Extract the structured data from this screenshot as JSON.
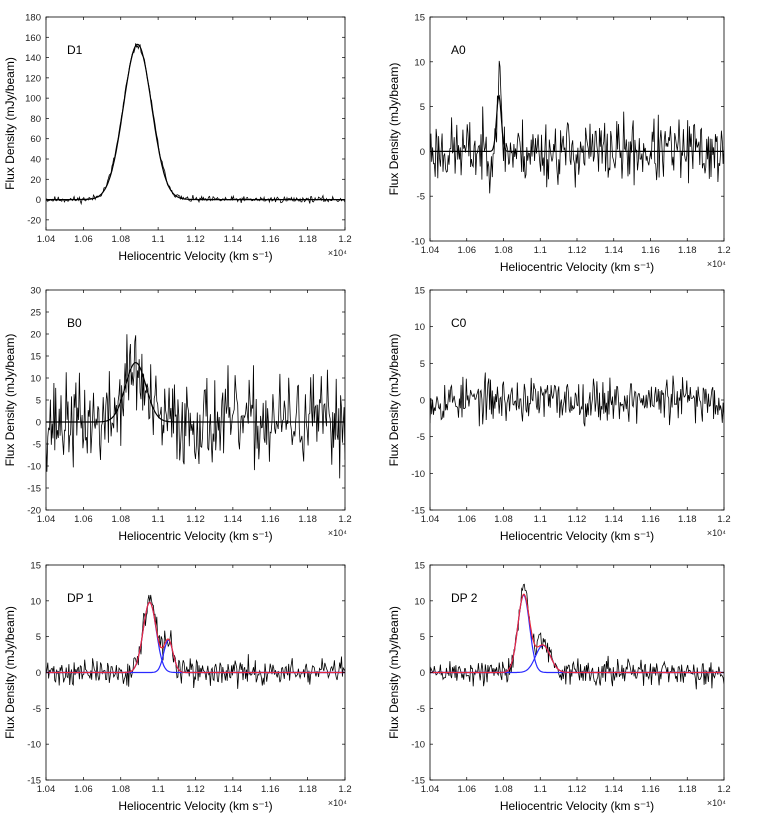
{
  "chart_data": [
    {
      "id": "D1",
      "type": "line",
      "label": "D1",
      "xlabel": "Heliocentric Velocity (km s⁻¹)",
      "ylabel": "Flux Density (mJy/beam)",
      "x_multiplier_label": "×10⁴",
      "xlim": [
        1.04,
        1.2
      ],
      "xticks": [
        "1.04",
        "1.06",
        "1.08",
        "1.1",
        "1.12",
        "1.14",
        "1.16",
        "1.18",
        "1.2"
      ],
      "ylim": [
        -30,
        180
      ],
      "yticks": [
        "-20",
        "0",
        "20",
        "40",
        "60",
        "80",
        "100",
        "120",
        "140",
        "160",
        "180"
      ],
      "series": [
        {
          "kind": "observed",
          "color": "#000000",
          "noise": 1.5,
          "seed": 11,
          "components": [
            {
              "center": 1.089,
              "amplitude": 152,
              "sigma": 0.0077
            }
          ]
        },
        {
          "kind": "fit",
          "color": "#000000",
          "components": [
            {
              "center": 1.089,
              "amplitude": 153,
              "sigma": 0.0075
            }
          ]
        }
      ]
    },
    {
      "id": "A0",
      "type": "line",
      "label": "A0",
      "xlabel": "Heliocentric Velocity (km s⁻¹)",
      "ylabel": "Flux Density (mJy/beam)",
      "x_multiplier_label": "×10⁴",
      "xlim": [
        1.04,
        1.2
      ],
      "xticks": [
        "1.04",
        "1.06",
        "1.08",
        "1.1",
        "1.12",
        "1.14",
        "1.16",
        "1.18",
        "1.2"
      ],
      "ylim": [
        -10,
        15
      ],
      "yticks": [
        "-10",
        "-5",
        "0",
        "5",
        "10",
        "15"
      ],
      "series": [
        {
          "kind": "observed",
          "color": "#000000",
          "noise": 1.8,
          "seed": 23,
          "components": [
            {
              "center": 1.0775,
              "amplitude": 7.5,
              "sigma": 0.0013
            }
          ]
        },
        {
          "kind": "fit",
          "color": "#000000",
          "components": [
            {
              "center": 1.0775,
              "amplitude": 6.2,
              "sigma": 0.0013
            }
          ]
        }
      ]
    },
    {
      "id": "B0",
      "type": "line",
      "label": "B0",
      "xlabel": "Heliocentric Velocity (km s⁻¹)",
      "ylabel": "Flux Density (mJy/beam)",
      "x_multiplier_label": "×10⁴",
      "xlim": [
        1.04,
        1.2
      ],
      "xticks": [
        "1.04",
        "1.06",
        "1.08",
        "1.1",
        "1.12",
        "1.14",
        "1.16",
        "1.18",
        "1.2"
      ],
      "ylim": [
        -20,
        30
      ],
      "yticks": [
        "-20",
        "-15",
        "-10",
        "-5",
        "0",
        "5",
        "10",
        "15",
        "20",
        "25",
        "30"
      ],
      "series": [
        {
          "kind": "observed",
          "color": "#000000",
          "noise": 5.0,
          "seed": 37,
          "components": [
            {
              "center": 1.087,
              "amplitude": 12,
              "sigma": 0.0055
            }
          ]
        },
        {
          "kind": "fit",
          "color": "#000000",
          "components": [
            {
              "center": 1.088,
              "amplitude": 13.5,
              "sigma": 0.0055
            }
          ]
        }
      ]
    },
    {
      "id": "C0",
      "type": "line",
      "label": "C0",
      "xlabel": "Heliocentric Velocity (km s⁻¹)",
      "ylabel": "Flux Density (mJy/beam)",
      "x_multiplier_label": "×10⁴",
      "xlim": [
        1.04,
        1.2
      ],
      "xticks": [
        "1.04",
        "1.06",
        "1.08",
        "1.1",
        "1.12",
        "1.14",
        "1.16",
        "1.18",
        "1.2"
      ],
      "ylim": [
        -15,
        15
      ],
      "yticks": [
        "-15",
        "-10",
        "-5",
        "0",
        "5",
        "10",
        "15"
      ],
      "series": [
        {
          "kind": "observed",
          "color": "#000000",
          "noise": 1.5,
          "seed": 53,
          "components": []
        }
      ]
    },
    {
      "id": "DP1",
      "type": "line",
      "label": "DP 1",
      "xlabel": "Heliocentric Velocity (km s⁻¹)",
      "ylabel": "Flux Density (mJy/beam)",
      "x_multiplier_label": "×10⁴",
      "xlim": [
        1.04,
        1.2
      ],
      "xticks": [
        "1.04",
        "1.06",
        "1.08",
        "1.1",
        "1.12",
        "1.14",
        "1.16",
        "1.18",
        "1.2"
      ],
      "ylim": [
        -15,
        15
      ],
      "yticks": [
        "-15",
        "-10",
        "-5",
        "0",
        "5",
        "10",
        "15"
      ],
      "series": [
        {
          "kind": "observed",
          "color": "#000000",
          "noise": 0.9,
          "seed": 71,
          "components": [
            {
              "center": 1.0955,
              "amplitude": 10.2,
              "sigma": 0.0035
            },
            {
              "center": 1.1055,
              "amplitude": 4.6,
              "sigma": 0.0025
            }
          ]
        },
        {
          "kind": "fit",
          "color": "#2a2aff",
          "components": [
            {
              "center": 1.0955,
              "amplitude": 9.8,
              "sigma": 0.0035
            }
          ]
        },
        {
          "kind": "fit",
          "color": "#2a2aff",
          "components": [
            {
              "center": 1.1055,
              "amplitude": 4.5,
              "sigma": 0.0025
            }
          ]
        },
        {
          "kind": "fit",
          "color": "#e8283a",
          "components": [
            {
              "center": 1.0955,
              "amplitude": 9.8,
              "sigma": 0.0035
            },
            {
              "center": 1.1055,
              "amplitude": 4.5,
              "sigma": 0.0025
            }
          ]
        }
      ]
    },
    {
      "id": "DP2",
      "type": "line",
      "label": "DP 2",
      "xlabel": "Heliocentric Velocity (km s⁻¹)",
      "ylabel": "Flux Density (mJy/beam)",
      "x_multiplier_label": "×10⁴",
      "xlim": [
        1.04,
        1.2
      ],
      "xticks": [
        "1.04",
        "1.06",
        "1.08",
        "1.1",
        "1.12",
        "1.14",
        "1.16",
        "1.18",
        "1.2"
      ],
      "ylim": [
        -15,
        15
      ],
      "yticks": [
        "-15",
        "-10",
        "-5",
        "0",
        "5",
        "10",
        "15"
      ],
      "series": [
        {
          "kind": "observed",
          "color": "#000000",
          "noise": 0.9,
          "seed": 89,
          "components": [
            {
              "center": 1.091,
              "amplitude": 11.5,
              "sigma": 0.0032
            },
            {
              "center": 1.1015,
              "amplitude": 4.2,
              "sigma": 0.004
            }
          ]
        },
        {
          "kind": "fit",
          "color": "#2a2aff",
          "components": [
            {
              "center": 1.091,
              "amplitude": 10.8,
              "sigma": 0.0032
            }
          ]
        },
        {
          "kind": "fit",
          "color": "#2a2aff",
          "components": [
            {
              "center": 1.1015,
              "amplitude": 3.8,
              "sigma": 0.004
            }
          ]
        },
        {
          "kind": "fit",
          "color": "#e8283a",
          "components": [
            {
              "center": 1.091,
              "amplitude": 10.8,
              "sigma": 0.0032
            },
            {
              "center": 1.1015,
              "amplitude": 3.8,
              "sigma": 0.004
            }
          ]
        }
      ]
    }
  ]
}
